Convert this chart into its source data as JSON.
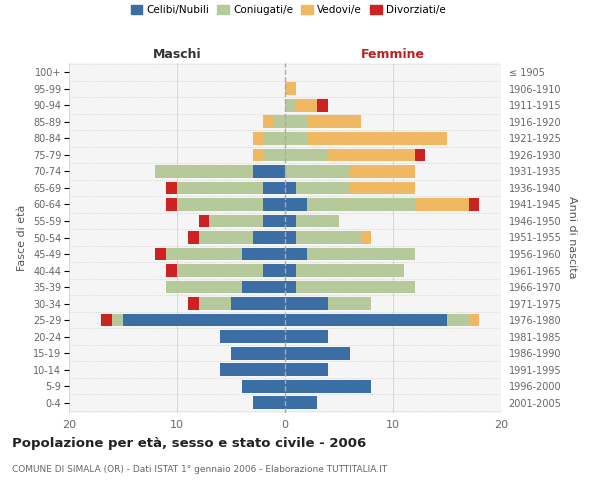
{
  "age_groups": [
    "0-4",
    "5-9",
    "10-14",
    "15-19",
    "20-24",
    "25-29",
    "30-34",
    "35-39",
    "40-44",
    "45-49",
    "50-54",
    "55-59",
    "60-64",
    "65-69",
    "70-74",
    "75-79",
    "80-84",
    "85-89",
    "90-94",
    "95-99",
    "100+"
  ],
  "birth_years": [
    "2001-2005",
    "1996-2000",
    "1991-1995",
    "1986-1990",
    "1981-1985",
    "1976-1980",
    "1971-1975",
    "1966-1970",
    "1961-1965",
    "1956-1960",
    "1951-1955",
    "1946-1950",
    "1941-1945",
    "1936-1940",
    "1931-1935",
    "1926-1930",
    "1921-1925",
    "1916-1920",
    "1911-1915",
    "1906-1910",
    "≤ 1905"
  ],
  "maschi": {
    "celibi": [
      3,
      4,
      6,
      5,
      6,
      15,
      5,
      4,
      2,
      4,
      3,
      2,
      2,
      2,
      3,
      0,
      0,
      0,
      0,
      0,
      0
    ],
    "coniugati": [
      0,
      0,
      0,
      0,
      0,
      1,
      3,
      7,
      8,
      7,
      5,
      5,
      8,
      8,
      9,
      2,
      2,
      1,
      0,
      0,
      0
    ],
    "vedovi": [
      0,
      0,
      0,
      0,
      0,
      0,
      0,
      0,
      0,
      0,
      0,
      0,
      0,
      0,
      0,
      1,
      1,
      1,
      0,
      0,
      0
    ],
    "divorziati": [
      0,
      0,
      0,
      0,
      0,
      1,
      1,
      0,
      1,
      1,
      1,
      1,
      1,
      1,
      0,
      0,
      0,
      0,
      0,
      0,
      0
    ]
  },
  "femmine": {
    "nubili": [
      3,
      8,
      4,
      6,
      4,
      15,
      4,
      1,
      1,
      2,
      1,
      1,
      2,
      1,
      0,
      0,
      0,
      0,
      0,
      0,
      0
    ],
    "coniugate": [
      0,
      0,
      0,
      0,
      0,
      2,
      4,
      11,
      10,
      10,
      6,
      4,
      10,
      5,
      6,
      4,
      2,
      2,
      1,
      0,
      0
    ],
    "vedove": [
      0,
      0,
      0,
      0,
      0,
      1,
      0,
      0,
      0,
      0,
      1,
      0,
      5,
      6,
      6,
      8,
      13,
      5,
      2,
      1,
      0
    ],
    "divorziate": [
      0,
      0,
      0,
      0,
      0,
      0,
      0,
      0,
      0,
      0,
      0,
      0,
      1,
      0,
      0,
      1,
      0,
      0,
      1,
      0,
      0
    ]
  },
  "colors": {
    "celibi": "#3a6ea5",
    "coniugati": "#b5c99a",
    "vedovi": "#f0b860",
    "divorziati": "#cc2222"
  },
  "xlim": 20,
  "title": "Popolazione per età, sesso e stato civile - 2006",
  "subtitle": "COMUNE DI SIMALA (OR) - Dati ISTAT 1° gennaio 2006 - Elaborazione TUTTITALIA.IT",
  "ylabel_left": "Fasce di età",
  "ylabel_right": "Anni di nascita",
  "xlabel_maschi": "Maschi",
  "xlabel_femmine": "Femmine",
  "bg_color": "#ffffff",
  "plot_bg": "#f5f5f5",
  "grid_color": "#cccccc",
  "legend_labels": [
    "Celibi/Nubili",
    "Coniugati/e",
    "Vedovi/e",
    "Divorziati/e"
  ]
}
